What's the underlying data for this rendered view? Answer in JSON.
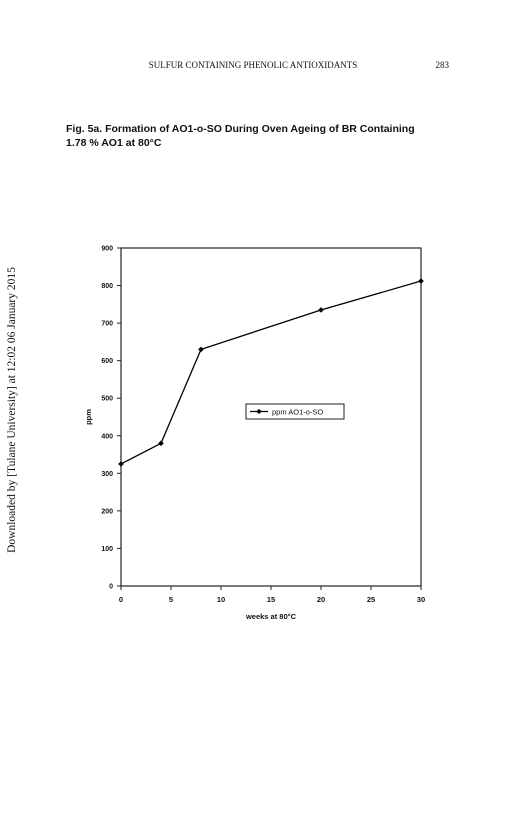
{
  "header": {
    "running_title": "SULFUR CONTAINING PHENOLIC ANTIOXIDANTS",
    "page_number": "283"
  },
  "sidebar": "Downloaded by [Tulane University] at 12:02 06 January 2015",
  "caption": [
    "Fig. 5a. Formation of AO1-o-SO During Oven Ageing of  BR Containing",
    "1.78 % AO1 at 80°C"
  ],
  "chart_data": {
    "type": "line",
    "x_label": "weeks at 80°C",
    "y_label": "ppm",
    "x": [
      0,
      4,
      8,
      20,
      30
    ],
    "series": [
      {
        "name": "ppm AO1-o-SO",
        "color": "#000000",
        "values": [
          325,
          380,
          630,
          735,
          812
        ]
      }
    ],
    "xlim": [
      0,
      30
    ],
    "xticks": [
      0,
      5,
      10,
      15,
      20,
      25,
      30
    ],
    "ylim": [
      0,
      900
    ],
    "yticks": [
      0,
      100,
      200,
      300,
      400,
      500,
      600,
      700,
      800,
      900
    ],
    "grid": false,
    "legend": "center-right"
  }
}
